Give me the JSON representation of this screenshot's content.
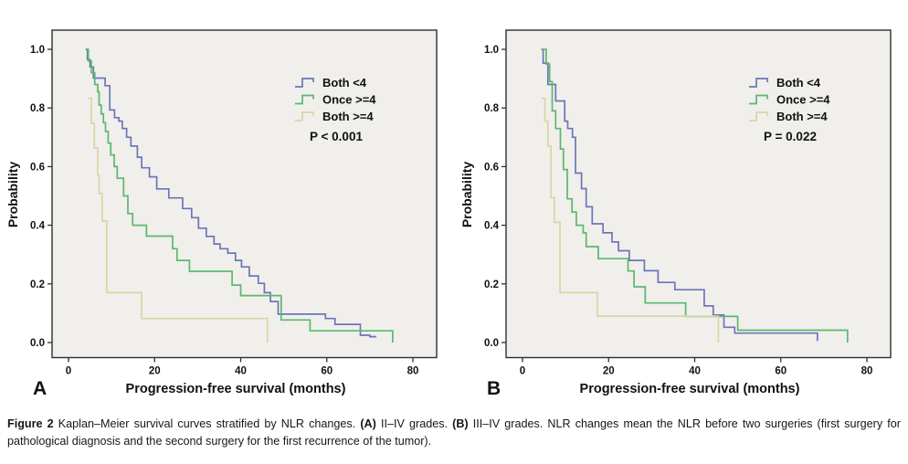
{
  "page": {
    "background": "#ffffff",
    "plot_background": "#f0efec",
    "frame_color": "#2f2f2f"
  },
  "caption": {
    "figure_label": "Figure 2",
    "text_1": " Kaplan–Meier survival curves stratified by NLR changes. ",
    "panel_a_label": "(A)",
    "text_2": " II–IV grades. ",
    "panel_b_label": "(B)",
    "text_3": " III–IV grades. NLR changes mean the NLR before two surgeries (first surgery for pathological diagnosis and the second surgery for the first recurrence of the tumor)."
  },
  "chart_data": [
    {
      "type": "line",
      "subtype": "kaplan-meier-step",
      "panel_label": "A",
      "title": "",
      "xlabel": "Progression-free survival (months)",
      "ylabel": "Probability",
      "p_value_label": "P < 0.001",
      "xlim": [
        -4,
        85
      ],
      "ylim": [
        0,
        1.0
      ],
      "xticks": [
        0,
        20,
        40,
        60,
        80
      ],
      "ytick_labels": [
        "1.0",
        "0.8",
        "0.6",
        "0.4",
        "0.2",
        "0.0"
      ],
      "grid": false,
      "legend_position": "upper-right",
      "series": [
        {
          "name": "Both <4",
          "color": "#6b76b8",
          "end": 71.5,
          "points": [
            [
              4,
              1.0
            ],
            [
              4.4,
              0.965
            ],
            [
              5,
              0.94
            ],
            [
              5.8,
              0.902
            ],
            [
              8.5,
              0.876
            ],
            [
              9.6,
              0.793
            ],
            [
              10.7,
              0.767
            ],
            [
              11.7,
              0.755
            ],
            [
              12.5,
              0.73
            ],
            [
              13.5,
              0.7
            ],
            [
              14.5,
              0.67
            ],
            [
              16,
              0.632
            ],
            [
              17,
              0.596
            ],
            [
              18.8,
              0.565
            ],
            [
              20.5,
              0.524
            ],
            [
              23.3,
              0.493
            ],
            [
              26.5,
              0.457
            ],
            [
              28.6,
              0.426
            ],
            [
              30.2,
              0.39
            ],
            [
              32,
              0.362
            ],
            [
              33.8,
              0.336
            ],
            [
              35.2,
              0.32
            ],
            [
              37,
              0.305
            ],
            [
              38.8,
              0.28
            ],
            [
              40.2,
              0.258
            ],
            [
              42,
              0.227
            ],
            [
              44.1,
              0.202
            ],
            [
              45.5,
              0.17
            ],
            [
              46.9,
              0.14
            ],
            [
              48.7,
              0.097
            ],
            [
              59.7,
              0.082
            ],
            [
              61.9,
              0.062
            ],
            [
              67.8,
              0.025
            ],
            [
              70,
              0.02
            ]
          ]
        },
        {
          "name": "Once >=4",
          "color": "#5cb86c",
          "end": 75.3,
          "points": [
            [
              4,
              1.0
            ],
            [
              4.6,
              0.96
            ],
            [
              5.3,
              0.92
            ],
            [
              6.1,
              0.88
            ],
            [
              6.8,
              0.855
            ],
            [
              7.1,
              0.81
            ],
            [
              7.6,
              0.78
            ],
            [
              8.1,
              0.75
            ],
            [
              8.6,
              0.72
            ],
            [
              9.2,
              0.68
            ],
            [
              9.8,
              0.64
            ],
            [
              10.6,
              0.6
            ],
            [
              11.3,
              0.56
            ],
            [
              12.8,
              0.5
            ],
            [
              13.8,
              0.44
            ],
            [
              14.9,
              0.4
            ],
            [
              18.1,
              0.363
            ],
            [
              24.2,
              0.32
            ],
            [
              25.2,
              0.28
            ],
            [
              28.1,
              0.243
            ],
            [
              38,
              0.196
            ],
            [
              40,
              0.16
            ],
            [
              49.4,
              0.077
            ],
            [
              56.1,
              0.04
            ],
            [
              75.3,
              0.0
            ]
          ]
        },
        {
          "name": "Both >=4",
          "color": "#dbd5a4",
          "end": 46.2,
          "points": [
            [
              4.6,
              0.833
            ],
            [
              5.3,
              0.747
            ],
            [
              6.0,
              0.664
            ],
            [
              6.8,
              0.57
            ],
            [
              7.1,
              0.508
            ],
            [
              7.8,
              0.414
            ],
            [
              8.9,
              0.17
            ],
            [
              17,
              0.082
            ],
            [
              46.2,
              0.0
            ]
          ]
        }
      ]
    },
    {
      "type": "line",
      "subtype": "kaplan-meier-step",
      "panel_label": "B",
      "title": "",
      "xlabel": "Progression-free survival (months)",
      "ylabel": "Probability",
      "p_value_label": "P = 0.022",
      "xlim": [
        -4,
        85
      ],
      "ylim": [
        0,
        1.0
      ],
      "xticks": [
        0,
        20,
        40,
        60,
        80
      ],
      "ytick_labels": [
        "1.0",
        "0.8",
        "0.6",
        "0.4",
        "0.2",
        "0.0"
      ],
      "grid": false,
      "legend_position": "upper-right",
      "series": [
        {
          "name": "Both <4",
          "color": "#6b76b8",
          "end": 68.5,
          "points": [
            [
              4.5,
              1.0
            ],
            [
              4.8,
              0.953
            ],
            [
              5.9,
              0.88
            ],
            [
              7.7,
              0.824
            ],
            [
              9.8,
              0.755
            ],
            [
              10.5,
              0.73
            ],
            [
              11.6,
              0.7
            ],
            [
              12.3,
              0.578
            ],
            [
              13.7,
              0.525
            ],
            [
              14.8,
              0.463
            ],
            [
              16.2,
              0.405
            ],
            [
              18.7,
              0.374
            ],
            [
              20.8,
              0.343
            ],
            [
              22.3,
              0.313
            ],
            [
              24.8,
              0.28
            ],
            [
              28.3,
              0.245
            ],
            [
              31.5,
              0.205
            ],
            [
              35.4,
              0.18
            ],
            [
              42.2,
              0.125
            ],
            [
              44.3,
              0.094
            ],
            [
              46.8,
              0.052
            ],
            [
              49.3,
              0.032
            ],
            [
              68.5,
              0.005
            ]
          ]
        },
        {
          "name": "Once >=4",
          "color": "#5cb86c",
          "end": 75.5,
          "points": [
            [
              4.3,
              1.0
            ],
            [
              5.5,
              0.95
            ],
            [
              6.3,
              0.89
            ],
            [
              6.9,
              0.79
            ],
            [
              7.7,
              0.73
            ],
            [
              8.8,
              0.66
            ],
            [
              9.5,
              0.59
            ],
            [
              10.4,
              0.49
            ],
            [
              11.5,
              0.445
            ],
            [
              12.5,
              0.4
            ],
            [
              14.1,
              0.374
            ],
            [
              14.8,
              0.327
            ],
            [
              17.6,
              0.286
            ],
            [
              24.5,
              0.244
            ],
            [
              25.9,
              0.19
            ],
            [
              28.5,
              0.135
            ],
            [
              37.9,
              0.089
            ],
            [
              50,
              0.042
            ],
            [
              75.5,
              0.0
            ]
          ]
        },
        {
          "name": "Both >=4",
          "color": "#dbd5a4",
          "end": 45.5,
          "points": [
            [
              4.5,
              0.833
            ],
            [
              5.2,
              0.755
            ],
            [
              5.9,
              0.67
            ],
            [
              6.6,
              0.494
            ],
            [
              7.4,
              0.41
            ],
            [
              8.7,
              0.17
            ],
            [
              17.4,
              0.09
            ],
            [
              45.5,
              0.0
            ]
          ]
        }
      ]
    }
  ]
}
